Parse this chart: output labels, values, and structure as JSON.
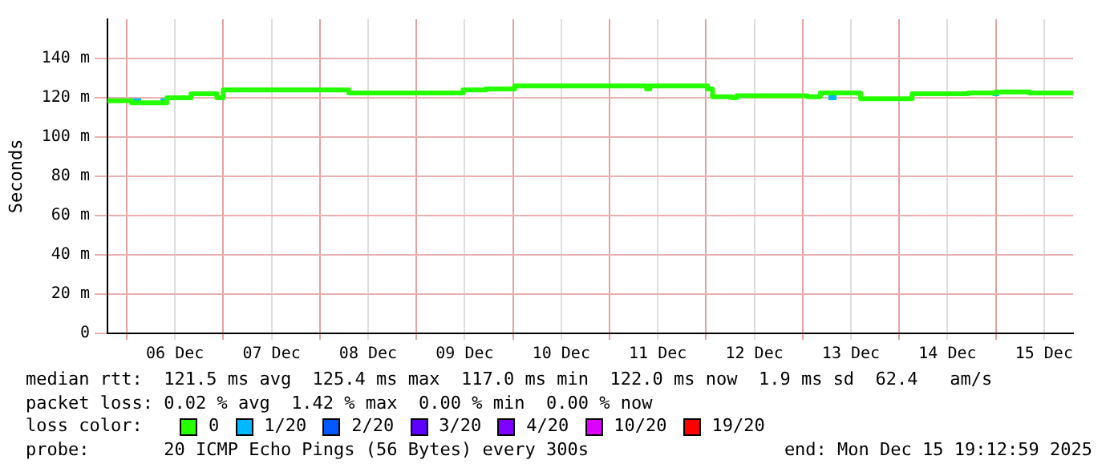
{
  "chart_data": {
    "type": "step",
    "ylabel": "Seconds",
    "xlim": [
      "2025-12-05T19:13",
      "2025-12-15T19:13"
    ],
    "xticks": [
      {
        "value": "2025-12-06T00:00",
        "label": null
      },
      {
        "value": "2025-12-06T12:00",
        "label": "06 Dec"
      },
      {
        "value": "2025-12-07T00:00",
        "label": null
      },
      {
        "value": "2025-12-07T12:00",
        "label": "07 Dec"
      },
      {
        "value": "2025-12-08T00:00",
        "label": null
      },
      {
        "value": "2025-12-08T12:00",
        "label": "08 Dec"
      },
      {
        "value": "2025-12-09T00:00",
        "label": null
      },
      {
        "value": "2025-12-09T12:00",
        "label": "09 Dec"
      },
      {
        "value": "2025-12-10T00:00",
        "label": null
      },
      {
        "value": "2025-12-10T12:00",
        "label": "10 Dec"
      },
      {
        "value": "2025-12-11T00:00",
        "label": null
      },
      {
        "value": "2025-12-11T12:00",
        "label": "11 Dec"
      },
      {
        "value": "2025-12-12T00:00",
        "label": null
      },
      {
        "value": "2025-12-12T12:00",
        "label": "12 Dec"
      },
      {
        "value": "2025-12-13T00:00",
        "label": null
      },
      {
        "value": "2025-12-13T12:00",
        "label": "13 Dec"
      },
      {
        "value": "2025-12-14T00:00",
        "label": null
      },
      {
        "value": "2025-12-14T12:00",
        "label": "14 Dec"
      },
      {
        "value": "2025-12-15T00:00",
        "label": null
      },
      {
        "value": "2025-12-15T12:00",
        "label": "15 Dec"
      }
    ],
    "ylim": [
      0,
      160
    ],
    "yticks": [
      0,
      {
        "value": 20,
        "label": "20 m"
      },
      {
        "value": 40,
        "label": "40 m"
      },
      {
        "value": 60,
        "label": "60 m"
      },
      {
        "value": 80,
        "label": "80 m"
      },
      {
        "value": 100,
        "label": "100 m"
      },
      {
        "value": 120,
        "label": "120 m"
      },
      {
        "value": 140,
        "label": "140 m"
      }
    ],
    "grid": true,
    "legend": "bottom",
    "legend_title": "loss color:",
    "series": [
      {
        "name": "0",
        "color": "#26ff00",
        "x": [
          "2025-12-05T19:13",
          "2025-12-06T01:12",
          "2025-12-06T10:00",
          "2025-12-06T16:00",
          "2025-12-06T22:24",
          "2025-12-07T00:00",
          "2025-12-08T07:12",
          "2025-12-09T11:36",
          "2025-12-09T17:12",
          "2025-12-10T00:24",
          "2025-12-11T09:12",
          "2025-12-11T10:00",
          "2025-12-12T00:24",
          "2025-12-12T01:36",
          "2025-12-12T06:24",
          "2025-12-12T07:36",
          "2025-12-13T01:12",
          "2025-12-13T04:24",
          "2025-12-13T14:24",
          "2025-12-14T03:12",
          "2025-12-14T17:12",
          "2025-12-15T00:00",
          "2025-12-15T08:24",
          "2025-12-15T09:12",
          "2025-12-15T19:13"
        ],
        "values": [
          119.5,
          118.5,
          117.5,
          120,
          122,
          120,
          124,
          122.5,
          124,
          124.5,
          126,
          124.5,
          126,
          124.5,
          120.5,
          120,
          121,
          120.5,
          122.5,
          119.5,
          122,
          122.5,
          123,
          122.5,
          122.5
        ]
      },
      {
        "name": "1/20",
        "color": "#00b8ff",
        "x": [
          "2025-12-06T01:12",
          "2025-12-06T03:36",
          "2025-12-06T03:37",
          "2025-12-06T08:24",
          "2025-12-06T10:24",
          "2025-12-06T10:25",
          "2025-12-13T06:24",
          "2025-12-13T08:24",
          "2025-12-13T08:25",
          "2025-12-14T23:12",
          "2025-12-15T00:48"
        ],
        "values": [
          118.5,
          118.5,
          null,
          118.5,
          118.5,
          null,
          120,
          120,
          null,
          122,
          122
        ]
      },
      {
        "name": "2/20",
        "color": "#0059ff"
      },
      {
        "name": "3/20",
        "color": "#5e00ff"
      },
      {
        "name": "4/20",
        "color": "#7e00ff"
      },
      {
        "name": "10/20",
        "color": "#dd00ff"
      },
      {
        "name": "19/20",
        "color": "#ff0000"
      }
    ],
    "annotations": [
      "median rtt:  121.5 ms avg  125.4 ms max  117.0 ms min  122.0 ms now  1.9 ms sd  62.4   am/s",
      "packet loss: 0.02 % avg  1.42 % max  0.00 % min  0.00 % now",
      "probe:       20 ICMP Echo Pings (56 Bytes) every 300s",
      "end: Mon Dec 15 19:12:59 2025"
    ]
  }
}
